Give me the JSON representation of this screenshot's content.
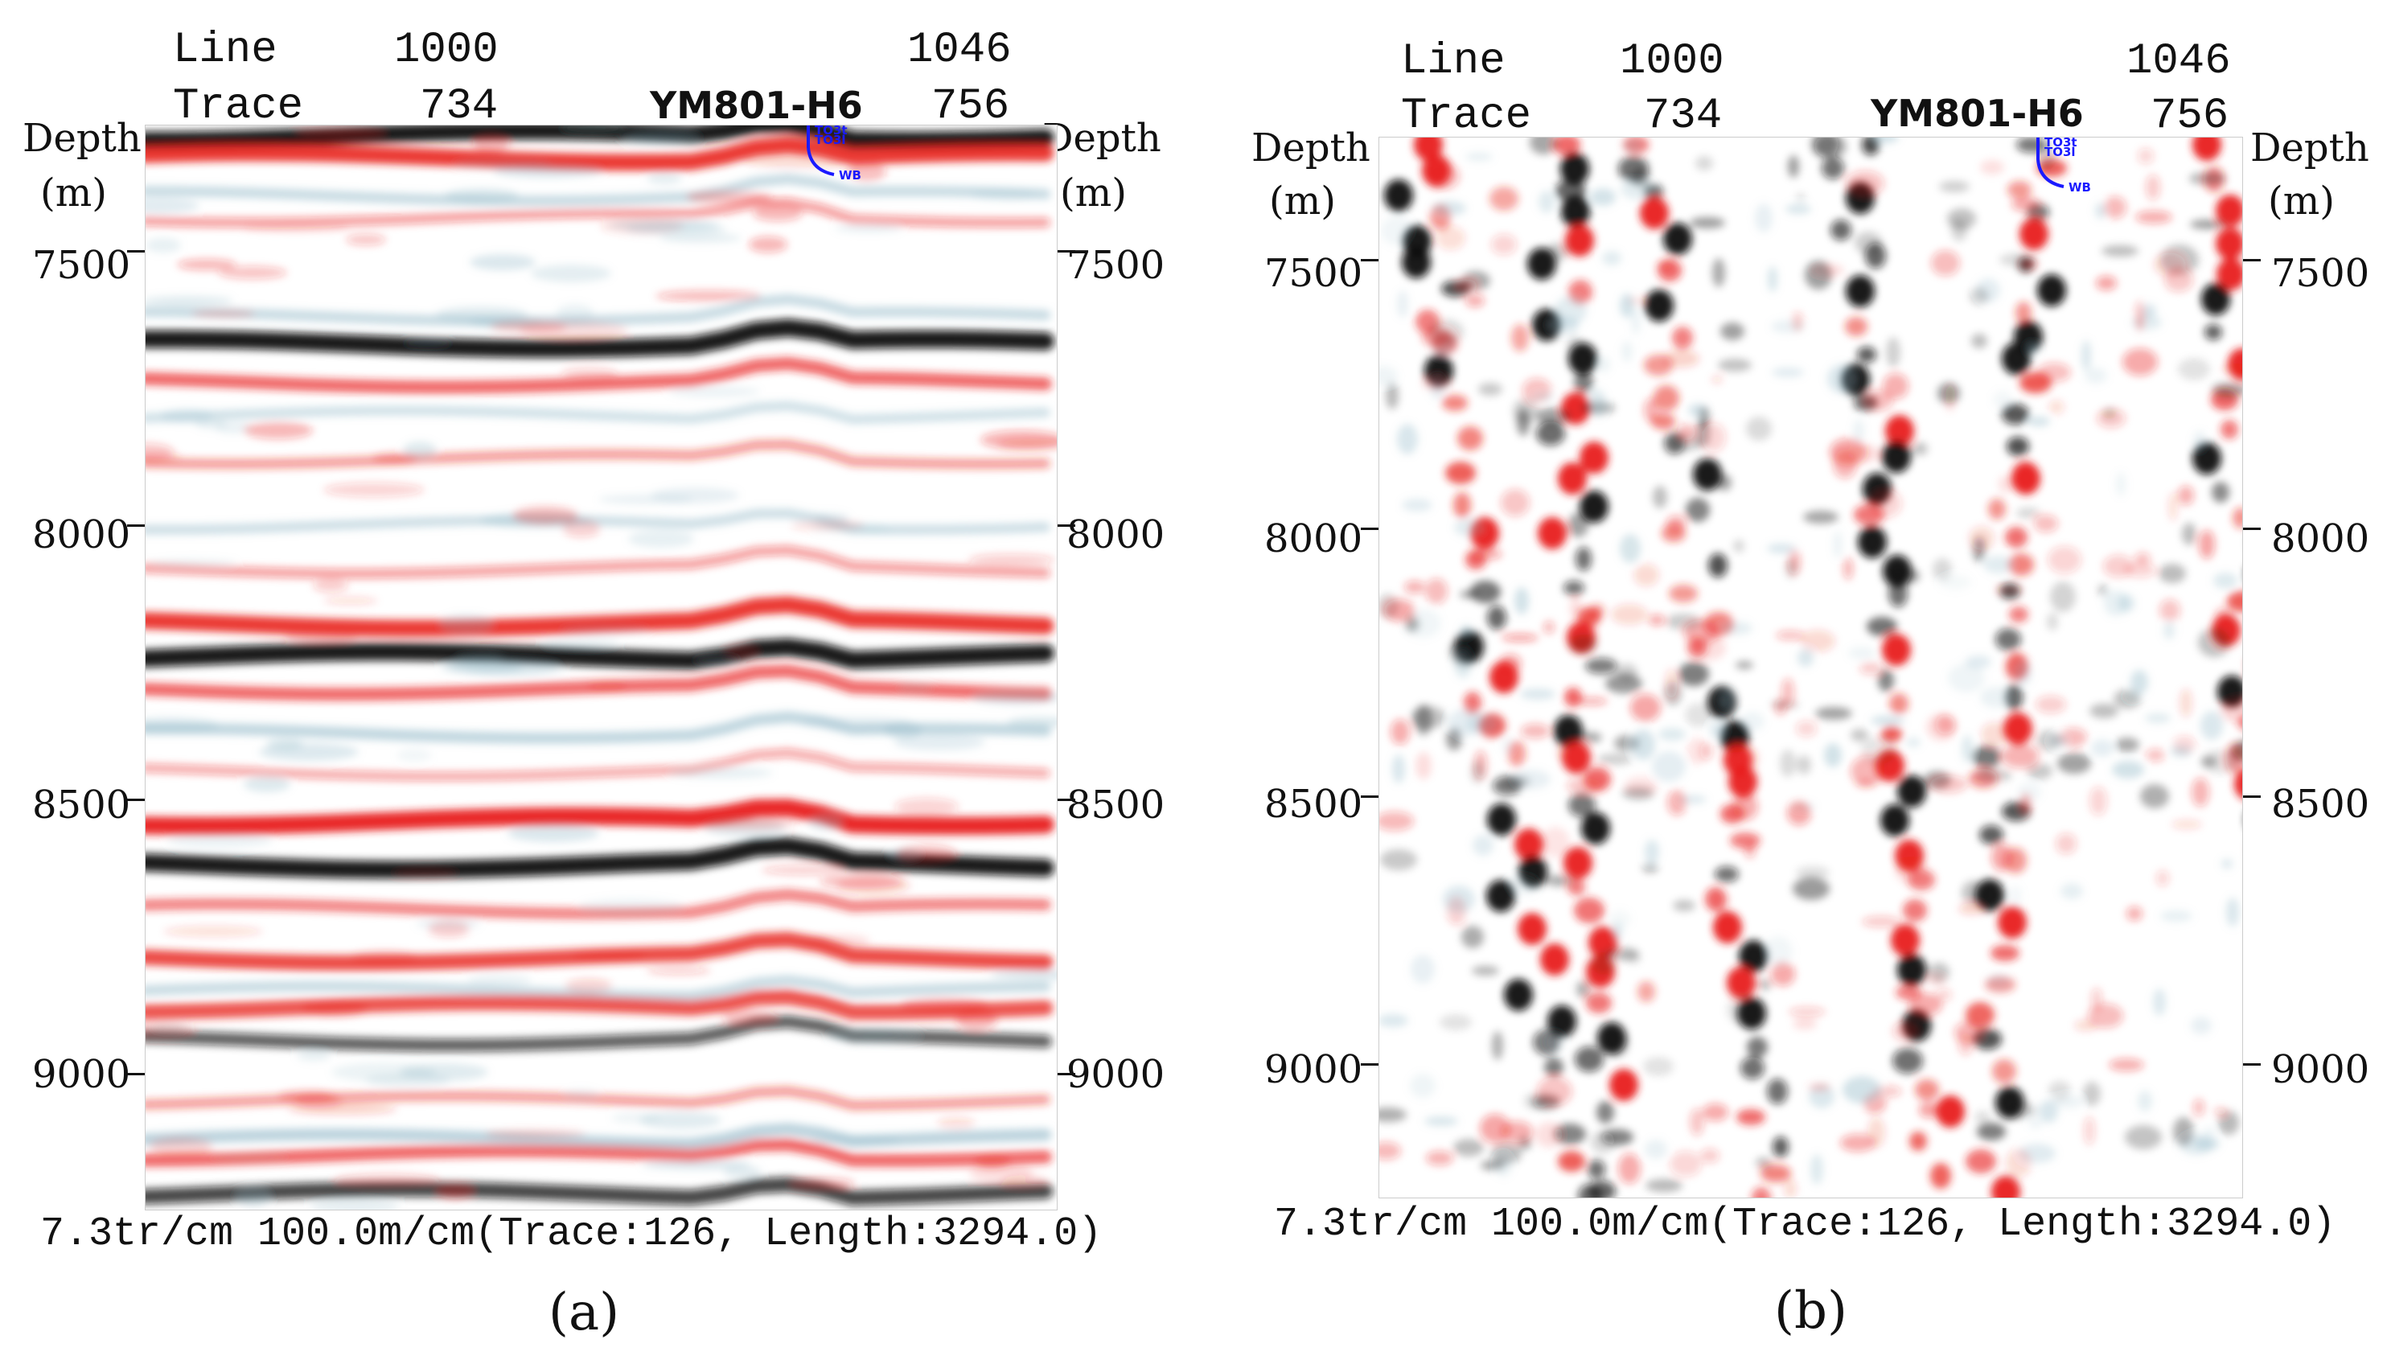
{
  "panels": [
    {
      "id": "a",
      "caption": "(a)",
      "line_label": "Line",
      "line_start": "1000",
      "line_end": "1046",
      "trace_label": "Trace",
      "trace_start": "734",
      "trace_end": "756",
      "well_name": "YM801-H6",
      "depth_label": "Depth",
      "depth_unit": "(m)",
      "depth_ticks": [
        "7500",
        "8000",
        "8500",
        "9000"
      ],
      "depth_tick_values": [
        7500,
        8000,
        8500,
        9000
      ],
      "depth_range": [
        7270,
        9250
      ],
      "well_markers": [
        "TO3t",
        "TO3l",
        "WB"
      ],
      "scale_text": "7.3tr/cm  100.0m/cm(Trace:126,  Length:3294.0)"
    },
    {
      "id": "b",
      "caption": "(b)",
      "line_label": "Line",
      "line_start": "1000",
      "line_end": "1046",
      "trace_label": "Trace",
      "trace_start": "734",
      "trace_end": "756",
      "well_name": "YM801-H6",
      "depth_label": "Depth",
      "depth_unit": "(m)",
      "depth_ticks": [
        "7500",
        "8000",
        "8500",
        "9000"
      ],
      "depth_tick_values": [
        7500,
        8000,
        8500,
        9000
      ],
      "depth_range": [
        7270,
        9250
      ],
      "well_markers": [
        "TO3t",
        "TO3l",
        "WB"
      ],
      "scale_text": "7.3tr/cm  100.0m/cm(Trace:126,  Length:3294.0)"
    }
  ],
  "colors": {
    "positive": "#e8201a",
    "negative": "#0c0c0c",
    "trough_tint": "#8fb6c6",
    "well": "#1a1aff"
  }
}
